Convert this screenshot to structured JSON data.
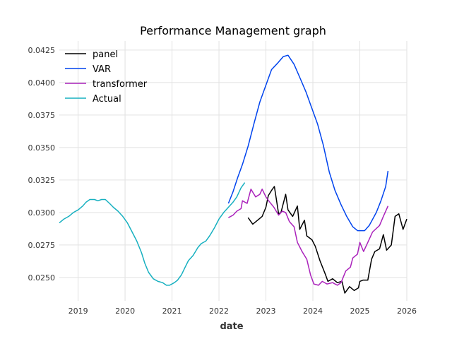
{
  "chart_data": {
    "type": "line",
    "title": "Performance Management graph",
    "xlabel": "date",
    "ylabel": "",
    "xlim": [
      2018.6,
      2026.0
    ],
    "ylim": [
      0.0232,
      0.0432
    ],
    "x_ticks": [
      {
        "value": 2019,
        "label": "2019"
      },
      {
        "value": 2020,
        "label": "2020"
      },
      {
        "value": 2021,
        "label": "2021"
      },
      {
        "value": 2022,
        "label": "2022"
      },
      {
        "value": 2023,
        "label": "2023"
      },
      {
        "value": 2024,
        "label": "2024"
      },
      {
        "value": 2025,
        "label": "2025"
      },
      {
        "value": 2026,
        "label": "2026"
      }
    ],
    "y_ticks": [
      {
        "value": 0.025,
        "label": "0.0250"
      },
      {
        "value": 0.0275,
        "label": "0.0275"
      },
      {
        "value": 0.03,
        "label": "0.0300"
      },
      {
        "value": 0.0325,
        "label": "0.0325"
      },
      {
        "value": 0.035,
        "label": "0.0350"
      },
      {
        "value": 0.0375,
        "label": "0.0375"
      },
      {
        "value": 0.04,
        "label": "0.0400"
      },
      {
        "value": 0.0425,
        "label": "0.0425"
      }
    ],
    "grid": true,
    "legend_position": "top-left",
    "series": [
      {
        "name": "panel",
        "color": "#000000",
        "points": [
          [
            2022.62,
            0.0296
          ],
          [
            2022.72,
            0.0291
          ],
          [
            2022.82,
            0.0294
          ],
          [
            2022.92,
            0.0297
          ],
          [
            2023.0,
            0.0304
          ],
          [
            2023.05,
            0.0313
          ],
          [
            2023.12,
            0.0317
          ],
          [
            2023.18,
            0.032
          ],
          [
            2023.27,
            0.0299
          ],
          [
            2023.32,
            0.03
          ],
          [
            2023.42,
            0.0314
          ],
          [
            2023.47,
            0.0302
          ],
          [
            2023.57,
            0.0297
          ],
          [
            2023.67,
            0.0305
          ],
          [
            2023.72,
            0.0287
          ],
          [
            2023.82,
            0.0294
          ],
          [
            2023.87,
            0.0282
          ],
          [
            2023.98,
            0.0279
          ],
          [
            2024.05,
            0.0274
          ],
          [
            2024.15,
            0.0263
          ],
          [
            2024.27,
            0.0252
          ],
          [
            2024.32,
            0.0247
          ],
          [
            2024.42,
            0.0249
          ],
          [
            2024.52,
            0.0246
          ],
          [
            2024.62,
            0.0247
          ],
          [
            2024.68,
            0.0238
          ],
          [
            2024.78,
            0.0243
          ],
          [
            2024.88,
            0.024
          ],
          [
            2024.97,
            0.0242
          ],
          [
            2025.0,
            0.0247
          ],
          [
            2025.07,
            0.0248
          ],
          [
            2025.17,
            0.0248
          ],
          [
            2025.25,
            0.0264
          ],
          [
            2025.32,
            0.027
          ],
          [
            2025.42,
            0.0272
          ],
          [
            2025.5,
            0.0283
          ],
          [
            2025.57,
            0.0271
          ],
          [
            2025.67,
            0.0275
          ],
          [
            2025.75,
            0.0297
          ],
          [
            2025.83,
            0.0299
          ],
          [
            2025.92,
            0.0287
          ],
          [
            2026.0,
            0.0295
          ]
        ]
      },
      {
        "name": "VAR",
        "color": "#0044ee",
        "points": [
          [
            2022.2,
            0.0307
          ],
          [
            2022.3,
            0.0316
          ],
          [
            2022.4,
            0.0327
          ],
          [
            2022.5,
            0.0337
          ],
          [
            2022.62,
            0.0351
          ],
          [
            2022.75,
            0.0369
          ],
          [
            2022.87,
            0.0385
          ],
          [
            2023.0,
            0.0398
          ],
          [
            2023.12,
            0.041
          ],
          [
            2023.25,
            0.0415
          ],
          [
            2023.37,
            0.042
          ],
          [
            2023.47,
            0.0421
          ],
          [
            2023.6,
            0.0414
          ],
          [
            2023.72,
            0.0404
          ],
          [
            2023.85,
            0.0393
          ],
          [
            2023.97,
            0.0381
          ],
          [
            2024.1,
            0.0368
          ],
          [
            2024.22,
            0.0352
          ],
          [
            2024.35,
            0.0331
          ],
          [
            2024.47,
            0.0317
          ],
          [
            2024.6,
            0.0306
          ],
          [
            2024.72,
            0.0297
          ],
          [
            2024.85,
            0.0289
          ],
          [
            2024.95,
            0.0286
          ],
          [
            2025.1,
            0.0286
          ],
          [
            2025.2,
            0.029
          ],
          [
            2025.35,
            0.03
          ],
          [
            2025.45,
            0.0309
          ],
          [
            2025.55,
            0.032
          ],
          [
            2025.6,
            0.0332
          ]
        ]
      },
      {
        "name": "transformer",
        "color": "#aa22bb",
        "points": [
          [
            2022.2,
            0.0296
          ],
          [
            2022.3,
            0.0298
          ],
          [
            2022.38,
            0.0301
          ],
          [
            2022.47,
            0.0303
          ],
          [
            2022.5,
            0.0309
          ],
          [
            2022.6,
            0.0307
          ],
          [
            2022.68,
            0.0318
          ],
          [
            2022.78,
            0.0312
          ],
          [
            2022.87,
            0.0314
          ],
          [
            2022.92,
            0.0318
          ],
          [
            2023.0,
            0.0312
          ],
          [
            2023.08,
            0.0308
          ],
          [
            2023.17,
            0.0304
          ],
          [
            2023.27,
            0.0298
          ],
          [
            2023.35,
            0.0301
          ],
          [
            2023.42,
            0.03
          ],
          [
            2023.5,
            0.0293
          ],
          [
            2023.6,
            0.0289
          ],
          [
            2023.67,
            0.0277
          ],
          [
            2023.77,
            0.027
          ],
          [
            2023.87,
            0.0264
          ],
          [
            2023.95,
            0.0252
          ],
          [
            2024.02,
            0.0245
          ],
          [
            2024.12,
            0.0244
          ],
          [
            2024.2,
            0.0247
          ],
          [
            2024.3,
            0.0245
          ],
          [
            2024.42,
            0.0246
          ],
          [
            2024.52,
            0.0244
          ],
          [
            2024.6,
            0.0246
          ],
          [
            2024.7,
            0.0255
          ],
          [
            2024.8,
            0.0258
          ],
          [
            2024.85,
            0.0265
          ],
          [
            2024.95,
            0.0268
          ],
          [
            2025.0,
            0.0277
          ],
          [
            2025.08,
            0.027
          ],
          [
            2025.17,
            0.0277
          ],
          [
            2025.27,
            0.0285
          ],
          [
            2025.42,
            0.029
          ],
          [
            2025.5,
            0.0297
          ],
          [
            2025.6,
            0.0305
          ]
        ]
      },
      {
        "name": "Actual",
        "color": "#17b0c0",
        "points": [
          [
            2018.6,
            0.0292
          ],
          [
            2018.7,
            0.0295
          ],
          [
            2018.8,
            0.0297
          ],
          [
            2018.9,
            0.03
          ],
          [
            2019.0,
            0.0302
          ],
          [
            2019.1,
            0.0305
          ],
          [
            2019.17,
            0.0308
          ],
          [
            2019.25,
            0.031
          ],
          [
            2019.35,
            0.031
          ],
          [
            2019.42,
            0.0309
          ],
          [
            2019.5,
            0.031
          ],
          [
            2019.58,
            0.031
          ],
          [
            2019.67,
            0.0307
          ],
          [
            2019.75,
            0.0304
          ],
          [
            2019.85,
            0.0301
          ],
          [
            2019.95,
            0.0297
          ],
          [
            2020.05,
            0.0292
          ],
          [
            2020.15,
            0.0285
          ],
          [
            2020.25,
            0.0278
          ],
          [
            2020.35,
            0.0269
          ],
          [
            2020.42,
            0.0261
          ],
          [
            2020.5,
            0.0254
          ],
          [
            2020.6,
            0.0249
          ],
          [
            2020.7,
            0.0247
          ],
          [
            2020.8,
            0.0246
          ],
          [
            2020.88,
            0.0244
          ],
          [
            2020.95,
            0.0244
          ],
          [
            2021.05,
            0.0246
          ],
          [
            2021.12,
            0.0248
          ],
          [
            2021.2,
            0.0252
          ],
          [
            2021.28,
            0.0258
          ],
          [
            2021.35,
            0.0263
          ],
          [
            2021.45,
            0.0267
          ],
          [
            2021.55,
            0.0273
          ],
          [
            2021.62,
            0.0276
          ],
          [
            2021.72,
            0.0278
          ],
          [
            2021.8,
            0.0282
          ],
          [
            2021.9,
            0.0288
          ],
          [
            2022.0,
            0.0295
          ],
          [
            2022.1,
            0.03
          ],
          [
            2022.2,
            0.0304
          ],
          [
            2022.3,
            0.0308
          ],
          [
            2022.38,
            0.0312
          ],
          [
            2022.47,
            0.0319
          ],
          [
            2022.55,
            0.0323
          ]
        ]
      }
    ]
  }
}
